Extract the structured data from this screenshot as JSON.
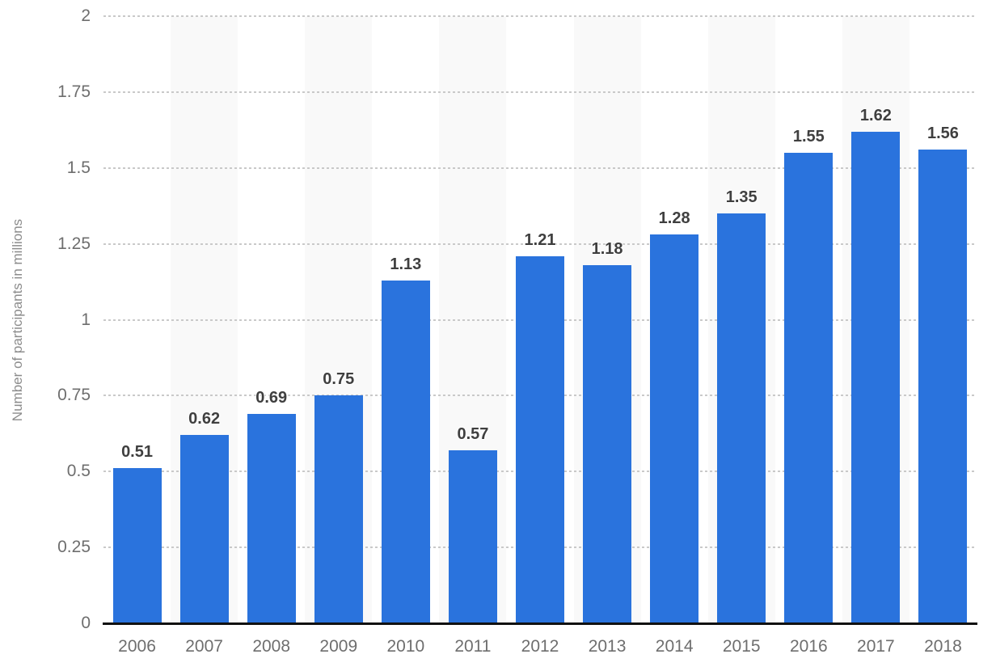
{
  "chart_data": {
    "type": "bar",
    "title": "",
    "categories": [
      "2006",
      "2007",
      "2008",
      "2009",
      "2010",
      "2011",
      "2012",
      "2013",
      "2014",
      "2015",
      "2016",
      "2017",
      "2018"
    ],
    "values": [
      0.51,
      0.62,
      0.69,
      0.75,
      1.13,
      0.57,
      1.21,
      1.18,
      1.28,
      1.35,
      1.55,
      1.62,
      1.56
    ],
    "value_labels": [
      "0.51",
      "0.62",
      "0.69",
      "0.75",
      "1.13",
      "0.57",
      "1.21",
      "1.18",
      "1.28",
      "1.35",
      "1.55",
      "1.62",
      "1.56"
    ],
    "xlabel": "",
    "ylabel": "Number of participants in millions",
    "ylim": [
      0,
      2
    ],
    "ytick_step": 0.25,
    "ytick_labels": [
      "0",
      "0.25",
      "0.5",
      "0.75",
      "1",
      "1.25",
      "1.5",
      "1.75",
      "2"
    ],
    "grid": "horizontal-dotted",
    "legend": "none"
  },
  "colors": {
    "bar": "#2a73dd",
    "column_band": "#f9f9f9",
    "gridline": "#c9c9c9",
    "axis_line": "#111111",
    "tick_text": "#6e6e6e",
    "value_label_text": "#3f3f3f",
    "axis_title_text": "#8c8c8c",
    "background": "#ffffff"
  }
}
